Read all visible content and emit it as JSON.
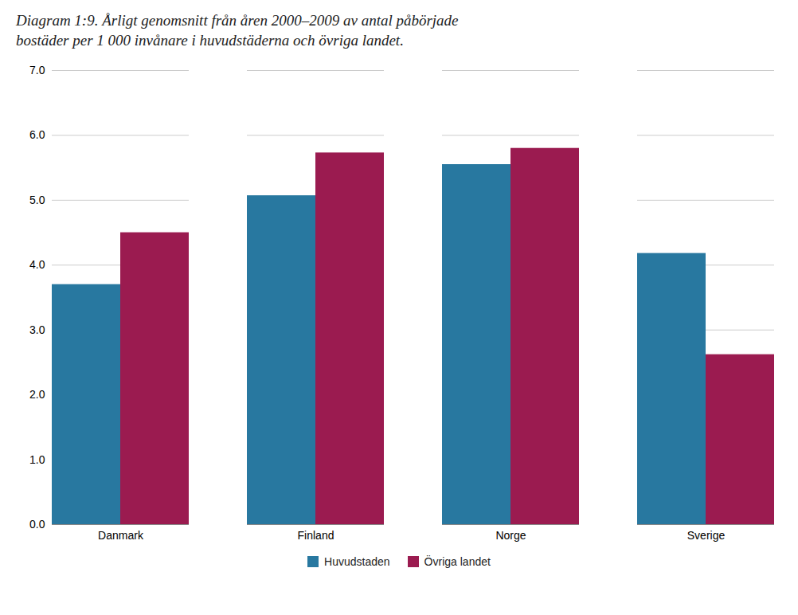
{
  "chart_data": {
    "type": "bar",
    "title": "Diagram 1:9. Årligt genomsnitt från åren 2000–2009 av antal påbörjade\nbostäder per 1 000 invånare i huvudstäderna och övriga landet.",
    "categories": [
      "Danmark",
      "Finland",
      "Norge",
      "Sverige"
    ],
    "series": [
      {
        "name": "Huvudstaden",
        "color": "#2878a0",
        "values": [
          3.7,
          5.07,
          5.55,
          4.18
        ]
      },
      {
        "name": "Övriga landet",
        "color": "#9B1B50",
        "values": [
          4.5,
          5.73,
          5.8,
          2.62
        ]
      }
    ],
    "ylim": [
      0,
      7
    ],
    "yticks": [
      0,
      1,
      2,
      3,
      4,
      5,
      6,
      7
    ],
    "grid": true,
    "legend": "bottom"
  }
}
